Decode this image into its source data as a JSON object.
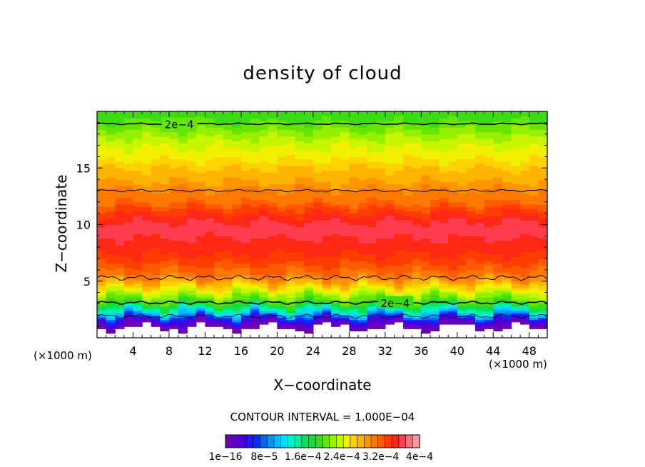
{
  "chart_data": {
    "type": "heatmap",
    "title": "density of cloud",
    "xlabel": "X−coordinate",
    "ylabel": "Z−coordinate",
    "x_unit_label": "(×1000 m)",
    "y_unit_label": "(×1000 m)",
    "xlim": [
      0,
      50
    ],
    "ylim": [
      0,
      20
    ],
    "x_ticks": [
      4,
      8,
      12,
      16,
      20,
      24,
      28,
      32,
      36,
      40,
      44,
      48
    ],
    "x_tick_labels": [
      "4",
      "8",
      "12",
      "16",
      "20",
      "24",
      "28",
      "32",
      "36",
      "40",
      "44",
      "48"
    ],
    "y_ticks": [
      5,
      10,
      15
    ],
    "y_tick_labels": [
      "5",
      "10",
      "15"
    ],
    "contour_interval_text": "CONTOUR INTERVAL = 1.000E−04",
    "contour_labels": [
      "2e−4",
      "2e−4"
    ],
    "contour_levels": [
      0.0002,
      0.0003
    ],
    "vertical_profile": {
      "z": [
        0.8,
        1.2,
        1.6,
        2.0,
        2.4,
        2.8,
        3.2,
        3.6,
        4.0,
        4.6,
        5.2,
        6.0,
        7.0,
        8.0,
        9.0,
        10.0,
        11.0,
        12.0,
        13.0,
        14.0,
        15.0,
        16.0,
        17.0,
        18.0,
        19.0,
        19.8
      ],
      "density": [
        0.0,
        2e-05,
        5e-05,
        0.0001,
        0.00014,
        0.00018,
        0.0002,
        0.00022,
        0.00024,
        0.00027,
        0.0003,
        0.00032,
        0.00034,
        0.00035,
        0.00036,
        0.00036,
        0.00034,
        0.00031,
        0.0003,
        0.00028,
        0.00027,
        0.00025,
        0.00024,
        0.00022,
        0.0002,
        0.00019
      ]
    },
    "colorbar": {
      "min": 1e-16,
      "max": 0.0004,
      "tick_labels": [
        "1e−16",
        "8e−5",
        "1.6e−4",
        "2.4e−4",
        "3.2e−4",
        "4e−4"
      ],
      "colors": [
        "#6e00b4",
        "#5a00c8",
        "#4600dc",
        "#2814f0",
        "#0032ff",
        "#0064ff",
        "#0096ff",
        "#00beff",
        "#00dcf0",
        "#00f0c8",
        "#00f096",
        "#00e664",
        "#14dc3c",
        "#3cdc14",
        "#64e600",
        "#96f000",
        "#c8f500",
        "#f0f000",
        "#ffd200",
        "#ffb400",
        "#ff9600",
        "#ff7800",
        "#ff5a00",
        "#ff3c00",
        "#ff2814",
        "#ff3c50",
        "#ff6e78",
        "#ff96a0"
      ]
    }
  }
}
